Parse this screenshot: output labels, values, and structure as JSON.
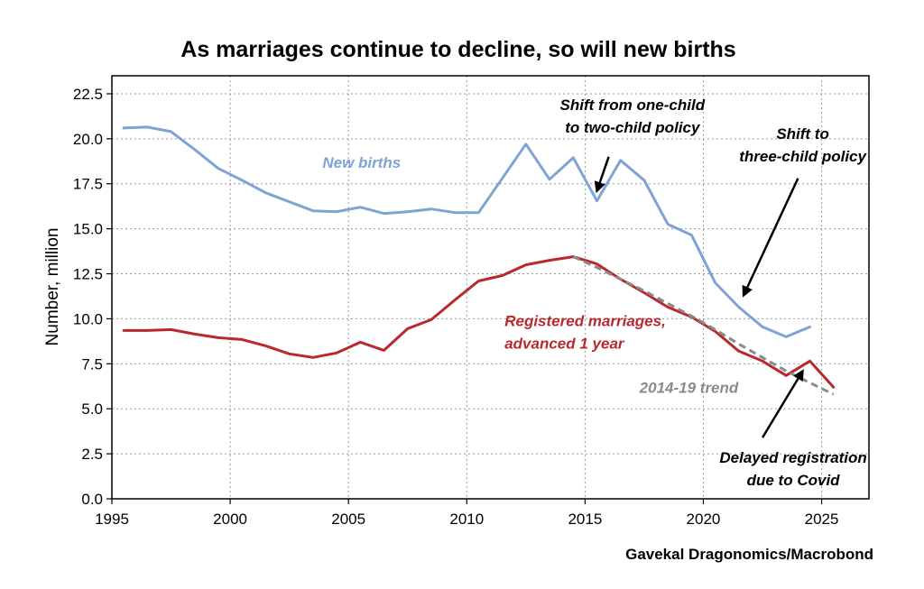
{
  "chart_data": {
    "type": "line",
    "title": "As marriages continue to decline, so will new births",
    "xlabel": "",
    "ylabel": "Number, million",
    "xlim": [
      1995,
      2027
    ],
    "ylim": [
      0,
      23.5
    ],
    "x_ticks": [
      1995,
      2000,
      2005,
      2010,
      2015,
      2020,
      2025
    ],
    "y_ticks": [
      0.0,
      2.5,
      5.0,
      7.5,
      10.0,
      12.5,
      15.0,
      17.5,
      20.0,
      22.5
    ],
    "y_tick_labels": [
      "0.0",
      "2.5",
      "5.0",
      "7.5",
      "10.0",
      "12.5",
      "15.0",
      "17.5",
      "20.0",
      "22.5"
    ],
    "grid": true,
    "source": "Gavekal Dragonomics/Macrobond",
    "series": [
      {
        "name": "New births",
        "color": "#7ea3d4",
        "style": "solid",
        "x": [
          1995.5,
          1996.5,
          1997.5,
          1998.5,
          1999.5,
          2000.5,
          2001.5,
          2002.5,
          2003.5,
          2004.5,
          2005.5,
          2006.5,
          2007.5,
          2008.5,
          2009.5,
          2010.5,
          2011.5,
          2012.5,
          2013.5,
          2014.5,
          2015.5,
          2016.5,
          2017.5,
          2018.5,
          2019.5,
          2020.5,
          2021.5,
          2022.5,
          2023.5,
          2024.5
        ],
        "values": [
          20.6,
          20.65,
          20.4,
          19.4,
          18.35,
          17.7,
          17.0,
          16.5,
          16.0,
          15.95,
          16.2,
          15.85,
          15.95,
          16.1,
          15.9,
          15.9,
          17.8,
          19.7,
          17.75,
          18.95,
          16.55,
          18.8,
          17.7,
          15.25,
          14.65,
          12.0,
          10.65,
          9.55,
          9.0,
          9.55
        ]
      },
      {
        "name": "Registered marriages, advanced 1 year",
        "color": "#b8282e",
        "style": "solid",
        "x": [
          1995.5,
          1996.5,
          1997.5,
          1998.5,
          1999.5,
          2000.5,
          2001.5,
          2002.5,
          2003.5,
          2004.5,
          2005.5,
          2006.5,
          2007.5,
          2008.5,
          2009.5,
          2010.5,
          2011.5,
          2012.5,
          2013.5,
          2014.5,
          2015.5,
          2016.5,
          2017.5,
          2018.5,
          2019.5,
          2020.5,
          2021.5,
          2022.5,
          2023.5,
          2024.5,
          2025.5
        ],
        "values": [
          9.35,
          9.35,
          9.4,
          9.15,
          8.95,
          8.85,
          8.5,
          8.05,
          7.85,
          8.1,
          8.7,
          8.25,
          9.45,
          9.95,
          11.05,
          12.1,
          12.4,
          13.0,
          13.25,
          13.45,
          13.05,
          12.2,
          11.45,
          10.65,
          10.1,
          9.3,
          8.2,
          7.65,
          6.85,
          7.65,
          6.2
        ]
      },
      {
        "name": "2014-19 trend",
        "color": "#8a8a8a",
        "style": "dashed",
        "x": [
          2014.5,
          2015.5,
          2016.5,
          2017.5,
          2018.5,
          2019.5,
          2020.5,
          2021.5,
          2022.5,
          2023.5,
          2024.5,
          2025.5
        ],
        "values": [
          13.45,
          12.85,
          12.2,
          11.55,
          10.85,
          10.15,
          9.4,
          8.6,
          7.85,
          7.1,
          6.45,
          5.8
        ]
      }
    ],
    "annotations": [
      {
        "text": [
          "New births"
        ],
        "color": "#7ea3d4",
        "anchor_x": 2003.9,
        "anchor_y": 18.4,
        "align": "start"
      },
      {
        "text": [
          "Registered marriages,",
          "advanced 1 year"
        ],
        "color": "#b8282e",
        "anchor_x": 2011.6,
        "anchor_y": 9.6,
        "align": "start"
      },
      {
        "text": [
          "2014-19 trend"
        ],
        "color": "#8a8a8a",
        "anchor_x": 2017.3,
        "anchor_y": 5.9,
        "align": "start"
      },
      {
        "text": [
          "Shift from one-child",
          "to two-child policy"
        ],
        "color": "#000000",
        "anchor_x": 2017.0,
        "anchor_y": 21.6,
        "align": "middle",
        "arrow_from": [
          2016.0,
          19.0
        ],
        "arrow_to": [
          2015.5,
          17.1
        ]
      },
      {
        "text": [
          "Shift to",
          "three-child policy"
        ],
        "color": "#000000",
        "anchor_x": 2024.2,
        "anchor_y": 20.0,
        "align": "middle",
        "arrow_from": [
          2024.0,
          17.8
        ],
        "arrow_to": [
          2021.7,
          11.3
        ]
      },
      {
        "text": [
          "Delayed registration",
          "due to Covid"
        ],
        "color": "#000000",
        "anchor_x": 2023.8,
        "anchor_y": 2.0,
        "align": "middle",
        "arrow_from": [
          2022.5,
          3.4
        ],
        "arrow_to": [
          2024.2,
          7.1
        ]
      }
    ]
  }
}
